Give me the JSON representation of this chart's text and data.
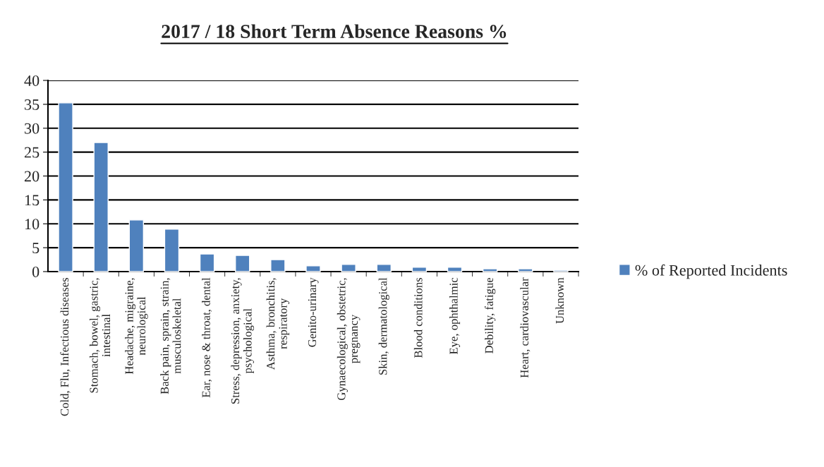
{
  "chart_data": {
    "type": "bar",
    "title": "2017 / 18 Short Term Absence Reasons %",
    "categories": [
      "Cold, Flu, Infectious diseases",
      "Stomach, bowel, gastric,\nintestinal",
      "Headache, migraine,\nneurological",
      "Back pain, sprain, strain,\nmusculoskeletal",
      "Ear, nose & throat, dental",
      "Stress, depression, anxiety,\npsychological",
      "Asthma, bronchitis,\nrespiratory",
      "Genito-urinary",
      "Gynaecological, obstetric,\npregnancy",
      "Skin, dermatological",
      "Blood conditions",
      "Eye, ophthalmic",
      "Debility, fatigue",
      "Heart, cardiovascular",
      "Unknown"
    ],
    "series": [
      {
        "name": "% of Reported Incidents",
        "color": "#4f81bd",
        "values": [
          35.3,
          27.0,
          10.8,
          8.9,
          3.7,
          3.4,
          2.5,
          1.2,
          1.5,
          1.5,
          0.9,
          0.9,
          0.6,
          0.6,
          0.3
        ]
      }
    ],
    "ylim": [
      0,
      40
    ],
    "yticks": [
      0,
      5,
      10,
      15,
      20,
      25,
      30,
      35,
      40
    ],
    "grid": "y",
    "legend": "right"
  }
}
